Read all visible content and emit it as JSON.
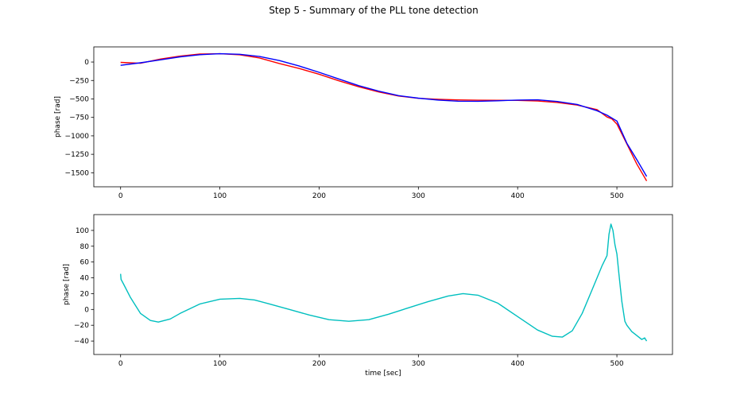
{
  "figure": {
    "title": "Step 5 - Summary of the PLL tone detection"
  },
  "chart_data": [
    {
      "type": "line",
      "title": "",
      "xlabel": "",
      "ylabel": "phase [rad]",
      "xlim": [
        -27,
        556
      ],
      "ylim": [
        -1690,
        205
      ],
      "xticks": [
        0,
        100,
        200,
        300,
        400,
        500
      ],
      "yticks": [
        0,
        -250,
        -500,
        -750,
        -1000,
        -1250,
        -1500
      ],
      "ytick_labels": [
        "0",
        "−250",
        "−500",
        "−750",
        "−1000",
        "−1250",
        "−1500"
      ],
      "grid": false,
      "legend": "none",
      "series": [
        {
          "color": "#ff0000",
          "x": [
            0,
            20,
            40,
            60,
            80,
            100,
            120,
            140,
            160,
            180,
            200,
            220,
            240,
            260,
            280,
            300,
            320,
            340,
            360,
            380,
            400,
            420,
            440,
            460,
            480,
            490,
            495,
            500,
            510,
            520,
            530
          ],
          "y": [
            -5,
            -17,
            40,
            80,
            108,
            112,
            98,
            55,
            -20,
            -88,
            -165,
            -255,
            -335,
            -405,
            -460,
            -492,
            -505,
            -513,
            -517,
            -519,
            -520,
            -528,
            -548,
            -583,
            -645,
            -745,
            -770,
            -840,
            -1110,
            -1380,
            -1610
          ]
        },
        {
          "color": "#0000ff",
          "x": [
            0,
            20,
            40,
            60,
            80,
            100,
            120,
            140,
            160,
            180,
            200,
            220,
            240,
            260,
            280,
            300,
            320,
            340,
            360,
            380,
            400,
            420,
            440,
            460,
            480,
            490,
            500,
            510,
            520,
            530
          ],
          "y": [
            -45,
            -10,
            30,
            70,
            100,
            112,
            105,
            75,
            20,
            -55,
            -140,
            -230,
            -320,
            -395,
            -455,
            -490,
            -515,
            -530,
            -532,
            -525,
            -515,
            -512,
            -535,
            -575,
            -660,
            -720,
            -800,
            -1100,
            -1320,
            -1550
          ]
        }
      ]
    },
    {
      "type": "line",
      "title": "",
      "xlabel": "time [sec]",
      "ylabel": "phase [rad]",
      "xlim": [
        -27,
        556
      ],
      "ylim": [
        -57,
        120
      ],
      "xticks": [
        0,
        100,
        200,
        300,
        400,
        500
      ],
      "yticks": [
        100,
        80,
        60,
        40,
        20,
        0,
        -20,
        -40
      ],
      "ytick_labels": [
        "100",
        "80",
        "60",
        "40",
        "20",
        "0",
        "−20",
        "−40"
      ],
      "grid": false,
      "legend": "none",
      "series": [
        {
          "color": "#00bfbf",
          "x": [
            0,
            0.5,
            3,
            10,
            20,
            30,
            38,
            50,
            60,
            80,
            100,
            120,
            135,
            150,
            170,
            190,
            210,
            230,
            250,
            270,
            290,
            310,
            330,
            345,
            360,
            380,
            400,
            420,
            435,
            445,
            455,
            465,
            475,
            485,
            490,
            492,
            494,
            496,
            498,
            500,
            502,
            505,
            508,
            510,
            515,
            520,
            525,
            528,
            530
          ],
          "y": [
            45,
            38,
            32,
            15,
            -5,
            -14,
            -16,
            -12,
            -5,
            7,
            13,
            14,
            12,
            7,
            0,
            -7,
            -13,
            -15,
            -13,
            -6,
            2,
            10,
            17,
            20,
            18,
            8,
            -9,
            -26,
            -34,
            -35,
            -27,
            -5,
            25,
            55,
            68,
            95,
            108,
            100,
            82,
            70,
            45,
            10,
            -15,
            -20,
            -28,
            -33,
            -38,
            -36,
            -40
          ]
        }
      ]
    }
  ]
}
